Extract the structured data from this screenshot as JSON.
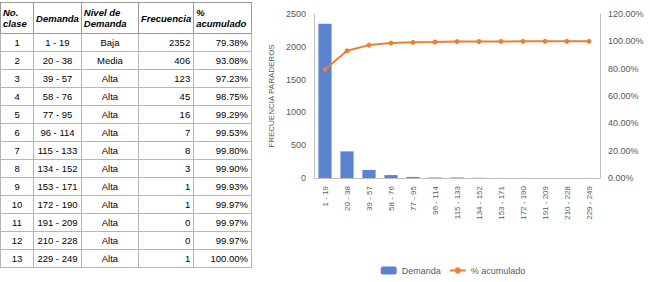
{
  "table": {
    "header": [
      "No. clase",
      "Demanda",
      "Nivel de Demanda",
      "Frecuencia",
      "% acumulado"
    ],
    "rows": [
      [
        "1",
        "1 - 19",
        "Baja",
        "2352",
        "79.38%"
      ],
      [
        "2",
        "20 - 38",
        "Media",
        "406",
        "93.08%"
      ],
      [
        "3",
        "39 - 57",
        "Alta",
        "123",
        "97.23%"
      ],
      [
        "4",
        "58 - 76",
        "Alta",
        "45",
        "98.75%"
      ],
      [
        "5",
        "77 - 95",
        "Alta",
        "16",
        "99.29%"
      ],
      [
        "6",
        "96 - 114",
        "Alta",
        "7",
        "99.53%"
      ],
      [
        "7",
        "115 - 133",
        "Alta",
        "8",
        "99.80%"
      ],
      [
        "8",
        "134 - 152",
        "Alta",
        "3",
        "99.90%"
      ],
      [
        "9",
        "153 - 171",
        "Alta",
        "1",
        "99.93%"
      ],
      [
        "10",
        "172 - 190",
        "Alta",
        "1",
        "99.97%"
      ],
      [
        "11",
        "191 - 209",
        "Alta",
        "0",
        "99.97%"
      ],
      [
        "12",
        "210 - 228",
        "Alta",
        "0",
        "99.97%"
      ],
      [
        "13",
        "229 - 249",
        "Alta",
        "1",
        "100.00%"
      ]
    ]
  },
  "chart_data": {
    "type": "bar",
    "ylabel": "FRECUENCIA PARADEROS",
    "categories": [
      "1 - 19",
      "20 - 38",
      "39 - 57",
      "58 - 76",
      "77 - 95",
      "96 - 114",
      "115 - 133",
      "134 - 152",
      "153 - 171",
      "172 - 190",
      "191 - 209",
      "210 - 228",
      "229 - 249"
    ],
    "series": [
      {
        "name": "Demanda",
        "type": "bar",
        "color": "#5b84d0",
        "values": [
          2352,
          406,
          123,
          45,
          16,
          7,
          8,
          3,
          1,
          1,
          0,
          0,
          1
        ]
      },
      {
        "name": "% acumulado",
        "type": "line",
        "axis": "y2",
        "color": "#ed7d31",
        "marker": "circle",
        "values": [
          79.38,
          93.08,
          97.23,
          98.75,
          99.29,
          99.53,
          99.8,
          99.9,
          99.93,
          99.97,
          99.97,
          99.97,
          100.0
        ]
      }
    ],
    "ylim": [
      0,
      2500
    ],
    "yticks": [
      0,
      500,
      1000,
      1500,
      2000,
      2500
    ],
    "y2lim": [
      0,
      120
    ],
    "y2ticks": [
      {
        "value": 0,
        "label": "0.00%"
      },
      {
        "value": 20,
        "label": "20.00%"
      },
      {
        "value": 40,
        "label": "40.00%"
      },
      {
        "value": 60,
        "label": "60.00%"
      },
      {
        "value": 80,
        "label": "80.00%"
      },
      {
        "value": 100,
        "label": "100.00%"
      },
      {
        "value": 120,
        "label": "120.00%"
      }
    ],
    "legend": "bottom",
    "grid": false
  }
}
